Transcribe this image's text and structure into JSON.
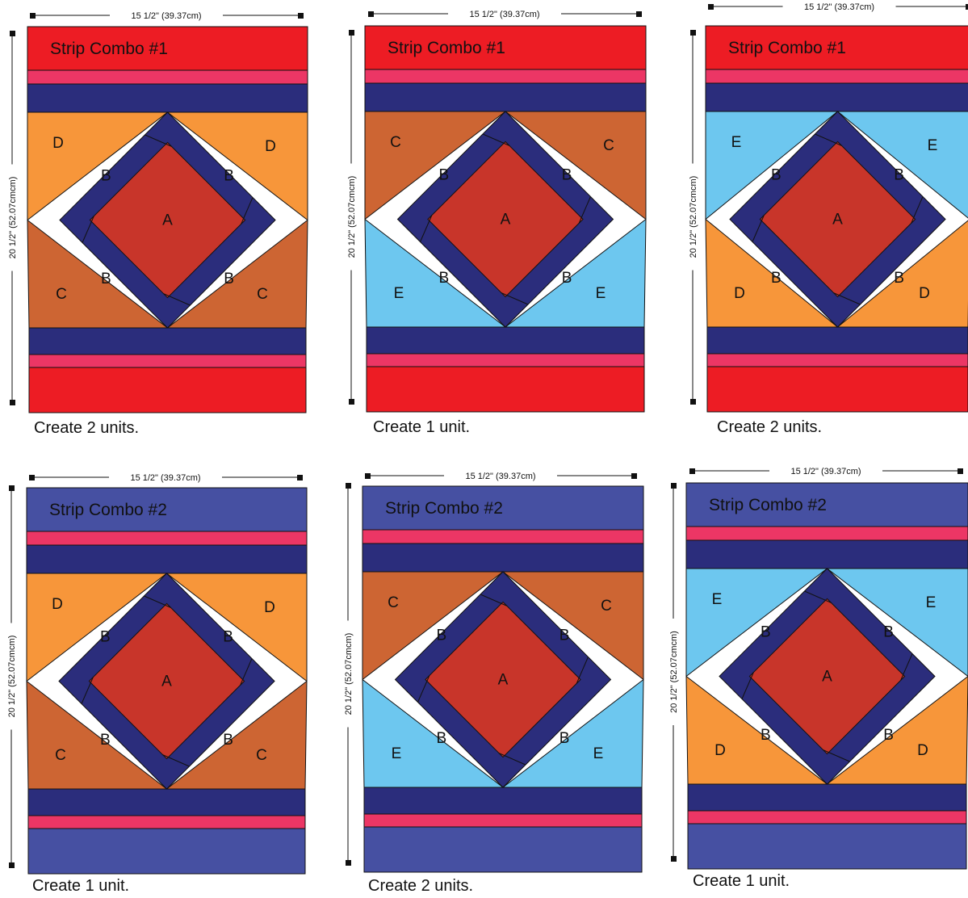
{
  "colors": {
    "red": "#ED1C24",
    "pink": "#EC3665",
    "navy": "#2B2D7C",
    "periwinkle": "#4650A2",
    "rust": "#C8352A",
    "orange": "#F7963A",
    "brown": "#CD6533",
    "skyblue": "#6DC7EF"
  },
  "legend": {
    "A": "rust",
    "B": "navy",
    "C": "brown",
    "D": "orange",
    "E": "skyblue"
  },
  "dimensions": {
    "width_label": "15 1/2\"   (39.37cm)",
    "height_label": "20 1/2\"   (52.07cmcm)"
  },
  "blocks": [
    {
      "strip_title": "Strip Combo #1",
      "strip_color": "red",
      "top_fabric": "D",
      "bottom_fabric": "C",
      "caption": "Create 2 units."
    },
    {
      "strip_title": "Strip Combo #1",
      "strip_color": "red",
      "top_fabric": "C",
      "bottom_fabric": "E",
      "caption": "Create 1 unit."
    },
    {
      "strip_title": "Strip Combo #1",
      "strip_color": "red",
      "top_fabric": "E",
      "bottom_fabric": "D",
      "caption": "Create 2 units."
    },
    {
      "strip_title": "Strip Combo #2",
      "strip_color": "periwinkle",
      "top_fabric": "D",
      "bottom_fabric": "C",
      "caption": "Create 1 unit."
    },
    {
      "strip_title": "Strip Combo #2",
      "strip_color": "periwinkle",
      "top_fabric": "C",
      "bottom_fabric": "E",
      "caption": "Create 2 units."
    },
    {
      "strip_title": "Strip Combo #2",
      "strip_color": "periwinkle",
      "top_fabric": "E",
      "bottom_fabric": "D",
      "caption": "Create 1 unit."
    }
  ]
}
